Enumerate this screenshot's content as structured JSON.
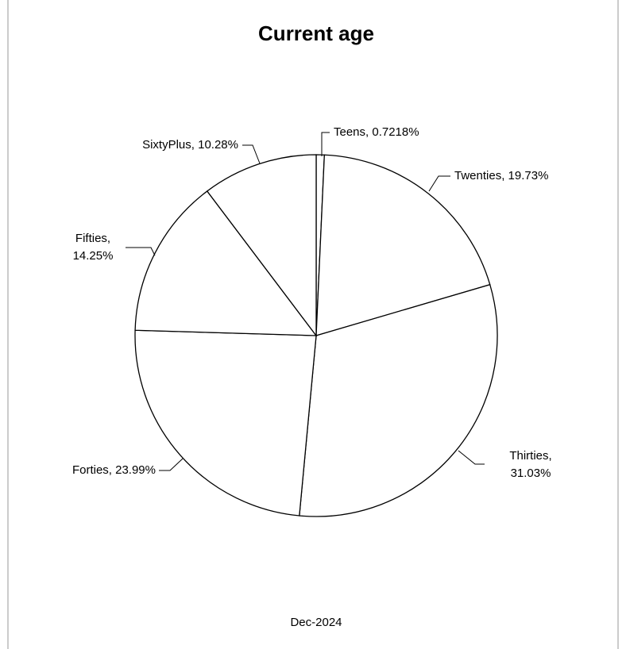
{
  "chart_data": {
    "type": "pie",
    "title": "Current age",
    "caption": "Dec-2024",
    "values": [
      0.7218,
      19.73,
      31.03,
      23.99,
      14.25,
      10.28
    ],
    "value_labels": [
      "Teens, 0.7218%",
      "Twenties, 19.73%",
      "Thirties,\n31.03%",
      "Forties, 23.99%",
      "Fifties,\n14.25%",
      "SixtyPlus, 10.28%"
    ],
    "color": "#ffffff"
  }
}
